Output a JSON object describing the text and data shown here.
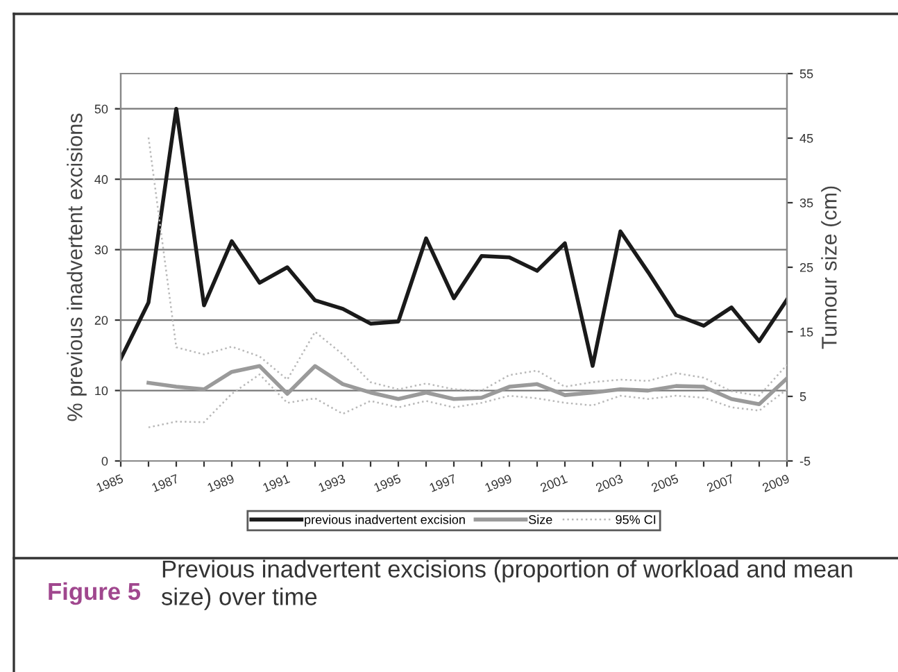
{
  "chart_data": {
    "type": "line",
    "title": "Figure 5",
    "subtitle": "Previous inadvertent excisions (proportion of workload and mean size) over time",
    "ylabel": "% previous inadvertent excisions",
    "y2label": "Tumour size (cm)",
    "x": [
      1985,
      1986,
      1987,
      1988,
      1989,
      1990,
      1991,
      1992,
      1993,
      1994,
      1995,
      1996,
      1997,
      1998,
      1999,
      2000,
      2001,
      2002,
      2003,
      2004,
      2005,
      2006,
      2007,
      2008,
      2009
    ],
    "series": [
      {
        "name": "previous inadvertent excision",
        "color": "#1a1a1a",
        "line_style": "solid",
        "values": [
          14.5,
          22.5,
          50,
          22.1,
          31.2,
          25.3,
          27.5,
          22.8,
          21.6,
          19.5,
          19.8,
          31.6,
          23.1,
          29.1,
          28.9,
          27,
          30.9,
          13.5,
          32.6,
          26.8,
          20.7,
          19.2,
          21.8,
          17,
          22.9
        ]
      },
      {
        "name": "Size",
        "color": "#9a9a9a",
        "axis": "y2",
        "line_style": "solid",
        "values": [
          null,
          7.1,
          6.5,
          6.1,
          8.8,
          9.7,
          5.4,
          9.7,
          6.9,
          5.6,
          4.6,
          5.6,
          4.6,
          4.8,
          6.5,
          6.9,
          5.2,
          5.6,
          6.1,
          5.9,
          6.6,
          6.5,
          4.6,
          3.8,
          7.8
        ]
      },
      {
        "name": "95% CI",
        "color": "#b8b8b8",
        "axis": "y2",
        "line_style": "dotted",
        "values": [
          null,
          45.1,
          12.6,
          11.5,
          12.7,
          11.2,
          7.6,
          15,
          11.5,
          7.2,
          6.1,
          7,
          6.1,
          5.9,
          8.3,
          9,
          6.5,
          7.2,
          7.6,
          7.4,
          8.6,
          7.9,
          5.8,
          5.1,
          9.9
        ]
      },
      {
        "color": "#b8b8b8",
        "axis": "y2",
        "line_style": "dotted",
        "values": [
          null,
          0.2,
          1.1,
          1,
          5.4,
          8.4,
          4,
          4.7,
          2.3,
          4.3,
          3.3,
          4.3,
          3.3,
          4,
          5.1,
          4.7,
          4,
          3.6,
          5.1,
          4.6,
          5.1,
          4.8,
          3.3,
          2.8,
          6.1
        ]
      }
    ],
    "xlim": [
      1985,
      2009
    ],
    "xticks": [
      1985,
      {
        "value": 1986,
        "label": null
      },
      1987,
      {
        "value": 1988,
        "label": null
      },
      1989,
      {
        "value": 1990,
        "label": null
      },
      1991,
      {
        "value": 1992,
        "label": null
      },
      1993,
      {
        "value": 1994,
        "label": null
      },
      1995,
      {
        "value": 1996,
        "label": null
      },
      1997,
      {
        "value": 1998,
        "label": null
      },
      1999,
      {
        "value": 2000,
        "label": null
      },
      2001,
      {
        "value": 2002,
        "label": null
      },
      2003,
      {
        "value": 2004,
        "label": null
      },
      2005,
      {
        "value": 2006,
        "label": null
      },
      2007,
      {
        "value": 2008,
        "label": null
      },
      2009
    ],
    "ylim": [
      0,
      55
    ],
    "yticks": [
      0,
      10,
      20,
      30,
      40,
      50
    ],
    "y2lim": [
      -5,
      55
    ],
    "y2ticks": [
      -5,
      5,
      15,
      25,
      35,
      45,
      55
    ],
    "grid": "y",
    "legend": "bottom",
    "marker": "none"
  }
}
